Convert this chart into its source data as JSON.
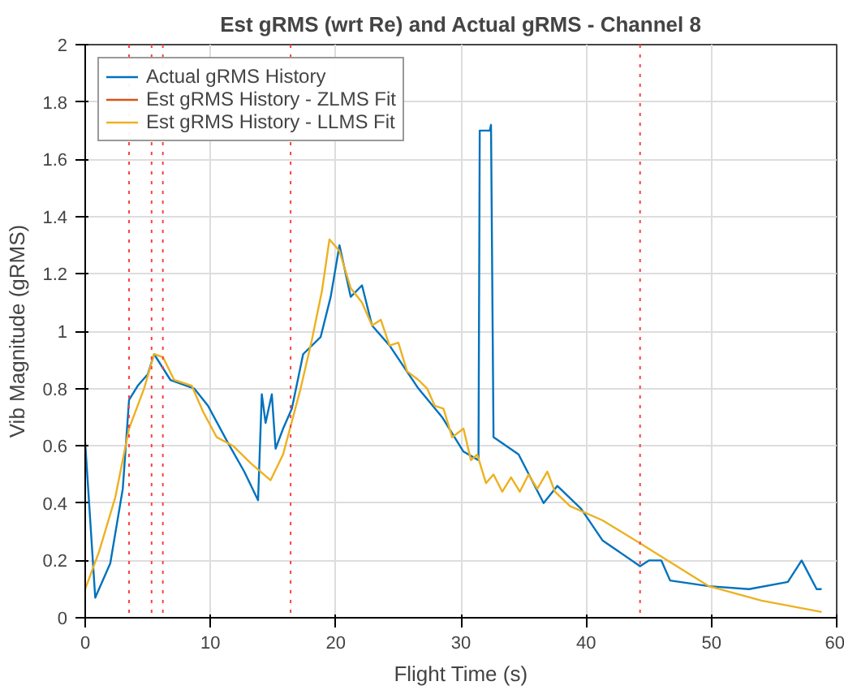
{
  "chart_data": {
    "type": "line",
    "title": "Est gRMS (wrt Re) and Actual gRMS - Channel 8",
    "xlabel": "Flight Time (s)",
    "ylabel": "Vib Magnitude (gRMS)",
    "xlim": [
      0,
      60
    ],
    "xticks": [
      0,
      10,
      20,
      30,
      40,
      50,
      60
    ],
    "ylim": [
      0,
      2
    ],
    "yticks": [
      0,
      0.2,
      0.4,
      0.6,
      0.8,
      1,
      1.2,
      1.4,
      1.6,
      1.8,
      2
    ],
    "grid": true,
    "legend": "top left",
    "line_style": "solid",
    "marker": "none",
    "series": [
      {
        "name": "Actual gRMS History",
        "color": "#0072bd",
        "x": [
          0,
          0.8,
          2,
          3,
          3.5,
          4.2,
          5,
          5.5,
          6.8,
          8.7,
          9.8,
          11.4,
          12.7,
          13.8,
          14.1,
          14.4,
          14.9,
          15.2,
          15.8,
          16.5,
          17.4,
          18.8,
          19.6,
          20.3,
          21.2,
          22.1,
          22.9,
          24.3,
          26.6,
          28.5,
          30.2,
          31.4,
          31.5,
          32.3,
          32.4,
          32.6,
          34.6,
          36.6,
          37.7,
          39.6,
          41.3,
          44.3,
          45,
          46,
          46.7,
          49.8,
          53,
          56.1,
          57.2,
          58.4,
          58.8
        ],
        "values": [
          0.61,
          0.07,
          0.19,
          0.45,
          0.76,
          0.81,
          0.85,
          0.92,
          0.83,
          0.8,
          0.74,
          0.61,
          0.51,
          0.41,
          0.78,
          0.68,
          0.78,
          0.59,
          0.66,
          0.73,
          0.92,
          0.98,
          1.12,
          1.3,
          1.12,
          1.16,
          1.02,
          0.95,
          0.8,
          0.7,
          0.58,
          0.55,
          1.7,
          1.7,
          1.72,
          0.63,
          0.57,
          0.4,
          0.46,
          0.38,
          0.27,
          0.18,
          0.2,
          0.2,
          0.13,
          0.11,
          0.1,
          0.125,
          0.2,
          0.1,
          0.1
        ]
      },
      {
        "name": "Est gRMS History - ZLMS Fit",
        "color": "#d95319"
      },
      {
        "name": "Est gRMS History - LLMS Fit",
        "color": "#edb120",
        "x": [
          0,
          1.1,
          2.4,
          3.5,
          4.7,
          5.5,
          6.2,
          7.1,
          8.5,
          9.4,
          10.5,
          11.8,
          13.2,
          14.8,
          15.8,
          17.2,
          18.1,
          18.9,
          19.5,
          20.3,
          21.2,
          22.1,
          22.9,
          23.6,
          24.3,
          25,
          25.7,
          26.6,
          27.3,
          27.9,
          28.6,
          29.3,
          30.2,
          30.8,
          31.3,
          32,
          32.6,
          33.3,
          34,
          34.7,
          35.4,
          36.1,
          36.9,
          37.5,
          38.7,
          41.3,
          44.3,
          49.8,
          54,
          58.8
        ],
        "values": [
          0.1,
          0.23,
          0.42,
          0.66,
          0.8,
          0.92,
          0.91,
          0.83,
          0.81,
          0.72,
          0.63,
          0.6,
          0.54,
          0.48,
          0.57,
          0.8,
          0.97,
          1.14,
          1.32,
          1.28,
          1.15,
          1.1,
          1.02,
          1.04,
          0.95,
          0.96,
          0.86,
          0.83,
          0.8,
          0.74,
          0.73,
          0.63,
          0.66,
          0.55,
          0.57,
          0.47,
          0.5,
          0.44,
          0.49,
          0.44,
          0.5,
          0.45,
          0.51,
          0.44,
          0.39,
          0.34,
          0.26,
          0.11,
          0.06,
          0.02
        ]
      }
    ],
    "ref_lines": [
      {
        "axis": "x",
        "value": 3.5,
        "color": "#ff4040",
        "line_style": "dotted"
      },
      {
        "axis": "x",
        "value": 5.3,
        "color": "#ff4040",
        "line_style": "dotted"
      },
      {
        "axis": "x",
        "value": 6.2,
        "color": "#ff4040",
        "line_style": "dotted"
      },
      {
        "axis": "x",
        "value": 16.4,
        "color": "#ff4040",
        "line_style": "dotted"
      },
      {
        "axis": "x",
        "value": 44.3,
        "color": "#ff4040",
        "line_style": "dotted"
      }
    ]
  }
}
